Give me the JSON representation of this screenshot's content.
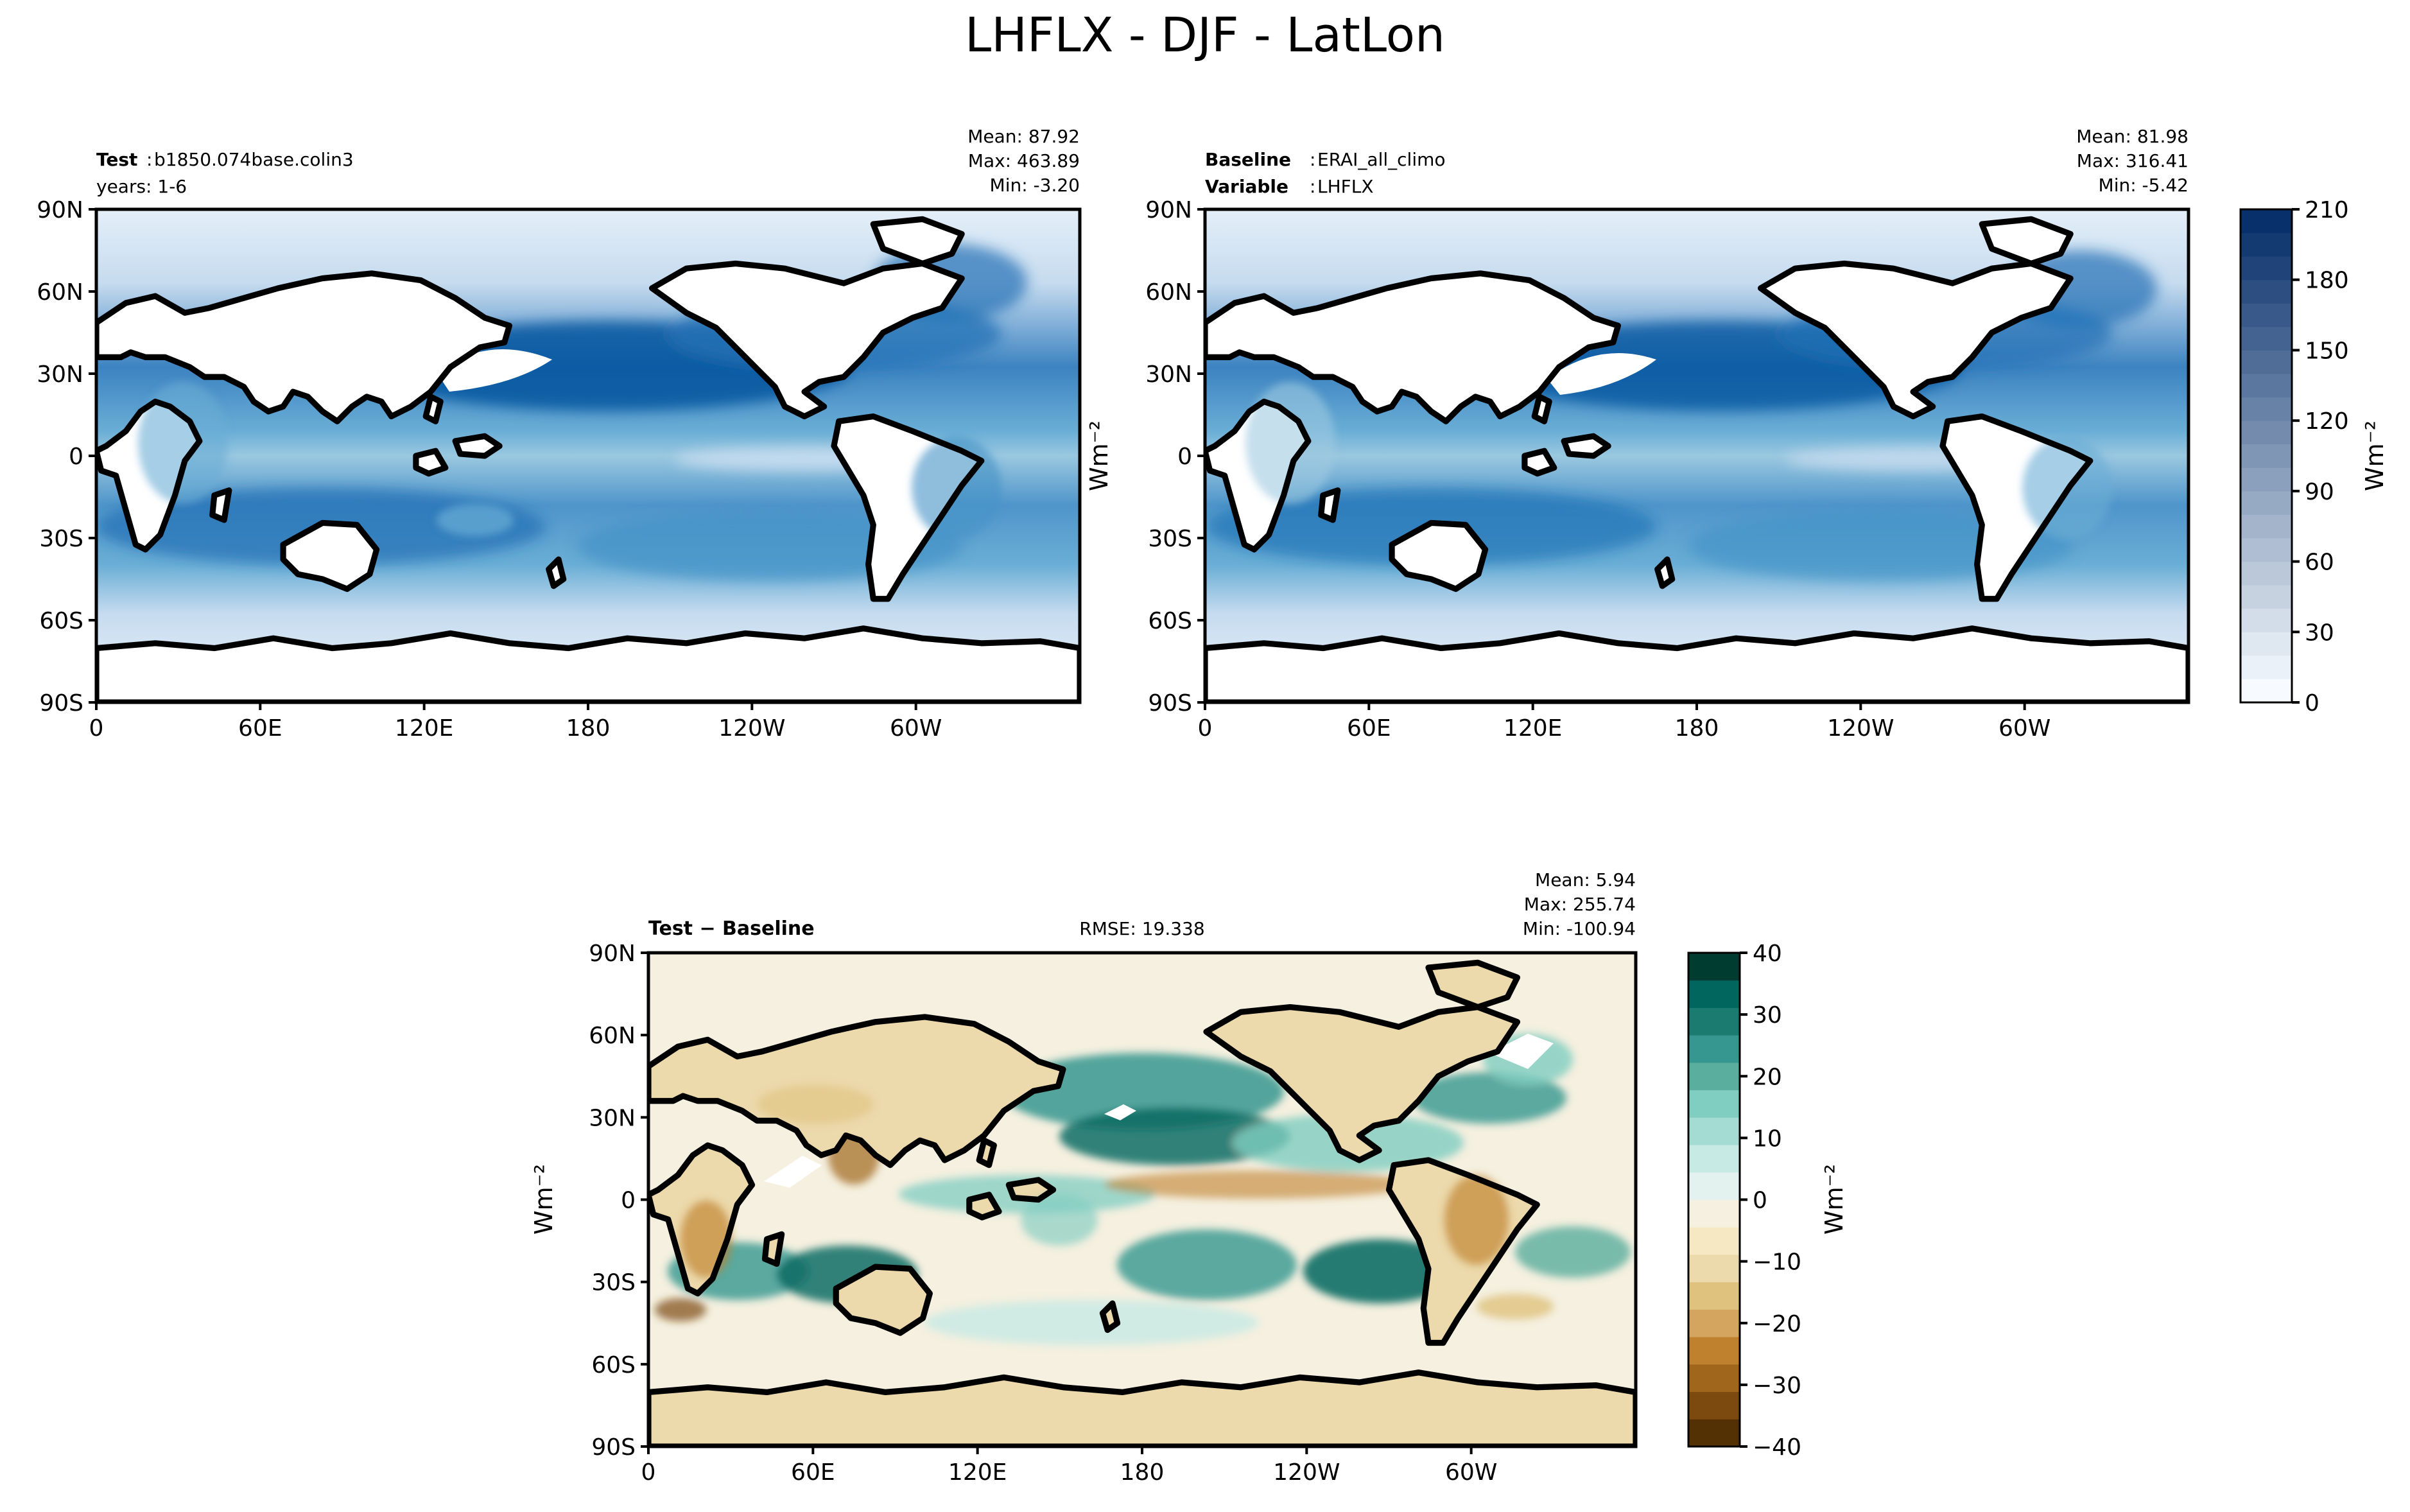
{
  "figure": {
    "title": "LHFLX - DJF - LatLon"
  },
  "chart_data": [
    {
      "type": "heatmap",
      "panel": "test",
      "left_label_bold": "Test",
      "left_label_value": "b1850.074base.colin3",
      "left_label_line2": "years: 1-6",
      "stats": [
        "Mean: 87.92",
        "Max: 463.89",
        "Min: -3.20"
      ],
      "xticks": [
        "0",
        "60E",
        "120E",
        "180",
        "120W",
        "60W"
      ],
      "yticks": [
        "90S",
        "60S",
        "30S",
        "0",
        "30N",
        "60N",
        "90N"
      ],
      "xlim": [
        0,
        360
      ],
      "ylim": [
        -90,
        90
      ],
      "colormap": "Blues",
      "colorbar_range": [
        0,
        210
      ]
    },
    {
      "type": "heatmap",
      "panel": "baseline",
      "label_line1_bold": "Baseline",
      "label_line1_value": "ERAI_all_climo",
      "label_line2_bold": "Variable",
      "label_line2_value": "LHFLX",
      "stats": [
        "Mean: 81.98",
        "Max: 316.41",
        "Min: -5.42"
      ],
      "xticks": [
        "0",
        "60E",
        "120E",
        "180",
        "120W",
        "60W"
      ],
      "yticks": [
        "90S",
        "60S",
        "30S",
        "0",
        "30N",
        "60N",
        "90N"
      ],
      "ylabel": "Wm⁻²",
      "xlim": [
        0,
        360
      ],
      "ylim": [
        -90,
        90
      ],
      "colorbar": {
        "label": "Wm⁻²",
        "ticks": [
          "0",
          "30",
          "60",
          "90",
          "120",
          "150",
          "180",
          "210"
        ],
        "levels": [
          0,
          10,
          20,
          30,
          40,
          50,
          60,
          70,
          80,
          90,
          100,
          110,
          120,
          130,
          140,
          150,
          160,
          170,
          180,
          190,
          200,
          210
        ],
        "color_low": "#f7fbff",
        "color_high": "#08306b"
      }
    },
    {
      "type": "heatmap",
      "panel": "difference",
      "label_bold": "Test − Baseline",
      "rmse": "RMSE: 19.338",
      "stats": [
        "Mean:  5.94",
        "Max: 255.74",
        "Min: -100.94"
      ],
      "xticks": [
        "0",
        "60E",
        "120E",
        "180",
        "120W",
        "60W"
      ],
      "yticks": [
        "90S",
        "60S",
        "30S",
        "0",
        "30N",
        "60N",
        "90N"
      ],
      "ylabel": "Wm⁻²",
      "xlim": [
        0,
        360
      ],
      "ylim": [
        -90,
        90
      ],
      "colorbar": {
        "label": "Wm⁻²",
        "ticks": [
          "−40",
          "−30",
          "−20",
          "−10",
          "0",
          "10",
          "20",
          "30",
          "40"
        ],
        "level_colors": [
          "#543005",
          "#7c4a0f",
          "#a0661c",
          "#bf812d",
          "#d4a55f",
          "#dfc27d",
          "#ecd9ac",
          "#f6e8c3",
          "#f5f0e0",
          "#e4f2ef",
          "#c7eae5",
          "#a4dbd2",
          "#80cdc1",
          "#5aae9e",
          "#35978f",
          "#1b7b71",
          "#01665e",
          "#003c30"
        ]
      }
    }
  ]
}
